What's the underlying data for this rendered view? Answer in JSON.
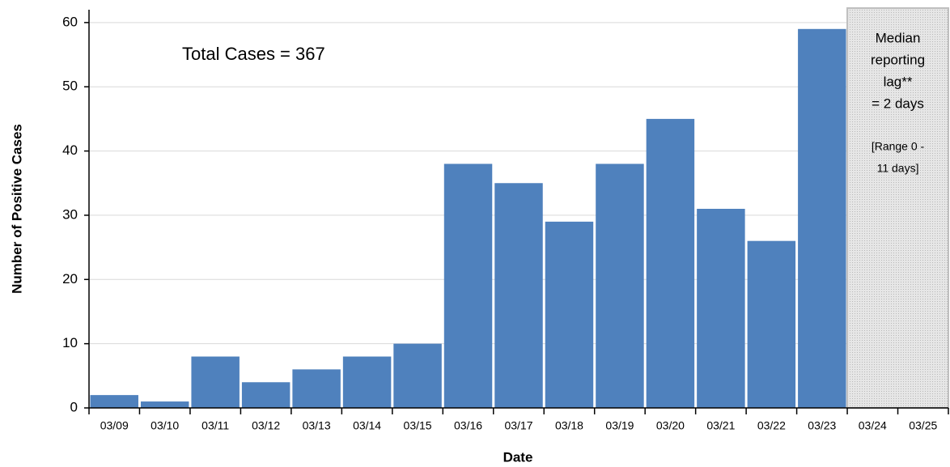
{
  "chart_data": {
    "type": "bar",
    "x_label": "Date",
    "y_label": "Number of Positive Cases",
    "annotation": "Total Cases = 367",
    "lag_note": [
      "Median",
      "reporting",
      "lag**",
      "= 2 days"
    ],
    "range_note": [
      "[Range 0 -",
      "11 days]"
    ],
    "categories": [
      "03/09",
      "03/10",
      "03/11",
      "03/12",
      "03/13",
      "03/14",
      "03/15",
      "03/16",
      "03/17",
      "03/18",
      "03/19",
      "03/20",
      "03/21",
      "03/22",
      "03/23",
      "03/24",
      "03/25"
    ],
    "values": [
      2,
      1,
      8,
      4,
      6,
      8,
      10,
      38,
      35,
      29,
      38,
      45,
      31,
      26,
      59,
      null,
      null
    ],
    "color": "#4f81bd",
    "ylim": [
      0,
      62
    ],
    "yticks": [
      0,
      10,
      20,
      30,
      40,
      50,
      60
    ],
    "grid": true
  }
}
